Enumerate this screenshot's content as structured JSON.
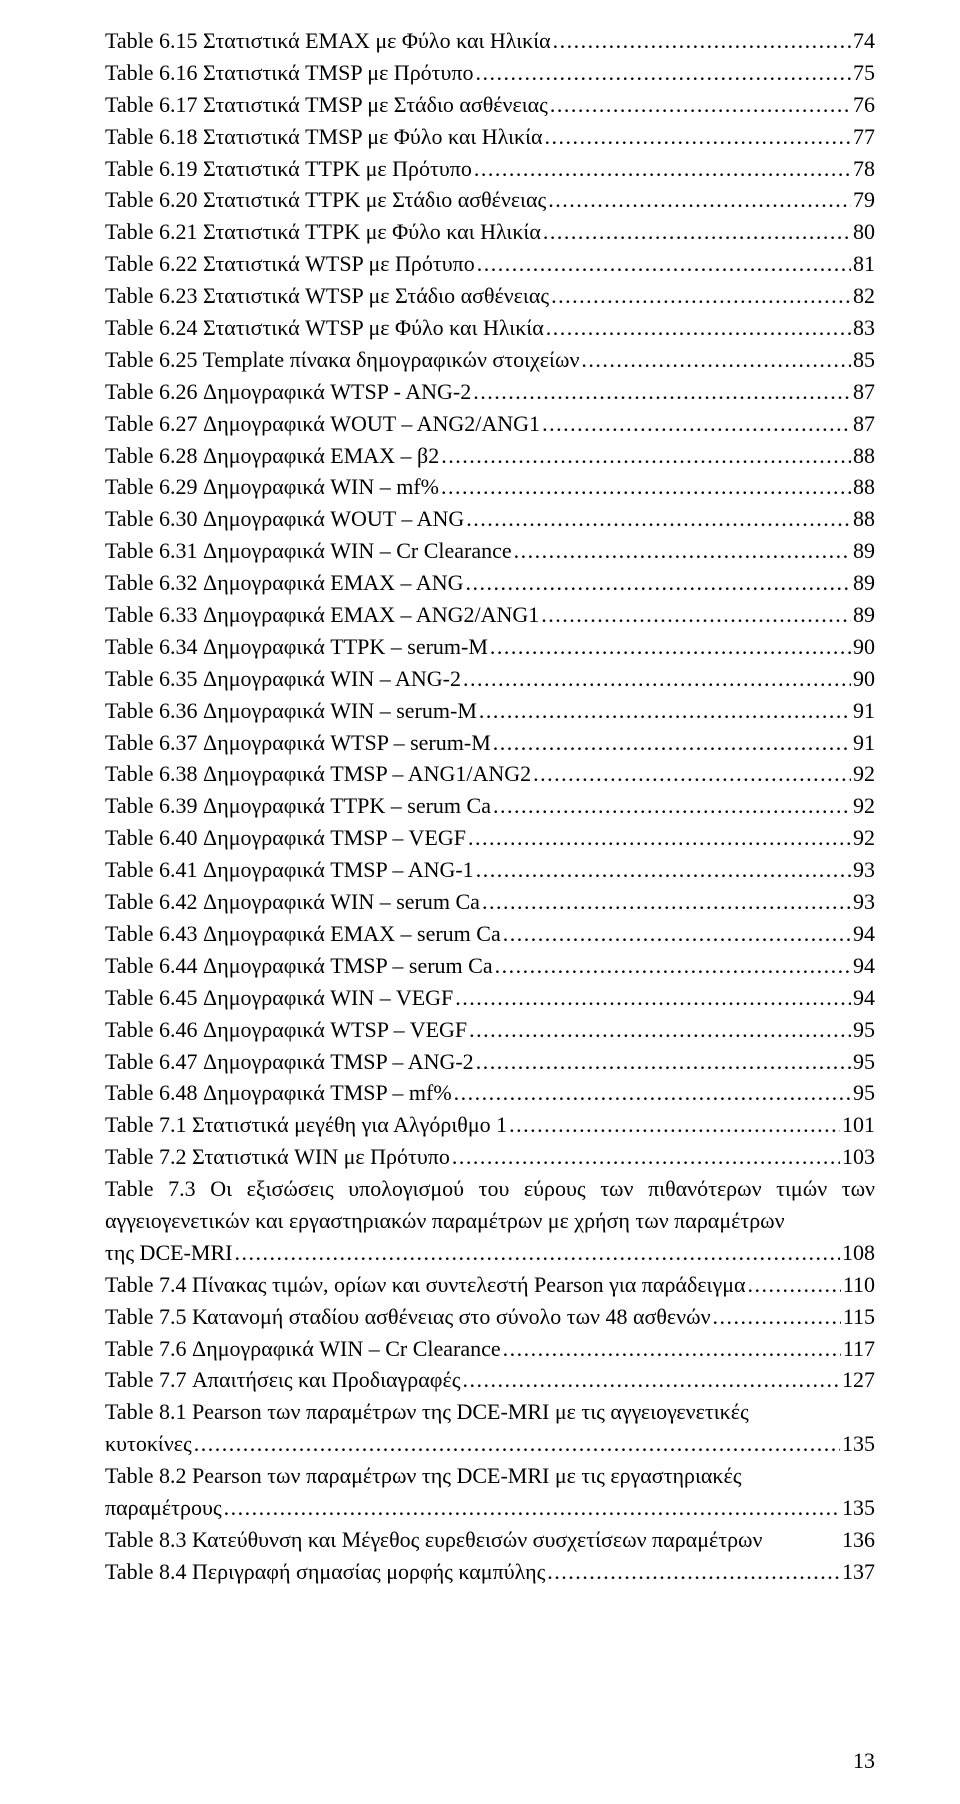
{
  "toc": {
    "footer_page": "13",
    "entries": [
      {
        "label": "Table 6.15 Στατιστικά ΕΜΑΧ με Φύλο και Ηλικία",
        "page": "74"
      },
      {
        "label": "Table 6.16 Στατιστικά TMSP με Πρότυπο",
        "page": "75"
      },
      {
        "label": "Table 6.17 Στατιστικά TMSP με Στάδιο ασθένειας",
        "page": "76"
      },
      {
        "label": "Table 6.18 Στατιστικά TMSP με Φύλο και Ηλικία",
        "page": "77"
      },
      {
        "label": "Table 6.19 Στατιστικά TTPK με Πρότυπο",
        "page": "78"
      },
      {
        "label": "Table 6.20 Στατιστικά TTPK με Στάδιο ασθένειας",
        "page": "79"
      },
      {
        "label": "Table 6.21 Στατιστικά TTPK με Φύλο και Ηλικία",
        "page": "80"
      },
      {
        "label": "Table 6.22 Στατιστικά WTSP με Πρότυπο",
        "page": "81"
      },
      {
        "label": "Table 6.23 Στατιστικά WTSP με Στάδιο ασθένειας",
        "page": "82"
      },
      {
        "label": "Table 6.24 Στατιστικά WTSP με Φύλο και Ηλικία",
        "page": "83"
      },
      {
        "label": "Table 6.25 Template πίνακα δημογραφικών στοιχείων",
        "page": "85"
      },
      {
        "label": "Table 6.26 Δημογραφικά WTSP - ANG-2",
        "page": "87"
      },
      {
        "label": "Table 6.27 Δημογραφικά WOUT – ANG2/ANG1",
        "page": "87"
      },
      {
        "label": "Table 6.28 Δημογραφικά EMAX – β2",
        "page": "88"
      },
      {
        "label": "Table 6.29 Δημογραφικά WIN – mf%",
        "page": "88"
      },
      {
        "label": "Table 6.30 Δημογραφικά WOUT – ANG",
        "page": "88"
      },
      {
        "label": "Table 6.31 Δημογραφικά WIN – Cr Clearance",
        "page": "89"
      },
      {
        "label": "Table 6.32 Δημογραφικά EMAX – ANG",
        "page": "89"
      },
      {
        "label": "Table 6.33 Δημογραφικά EMAX – ANG2/ANG1",
        "page": "89"
      },
      {
        "label": "Table 6.34 Δημογραφικά TTPK – serum-M",
        "page": "90"
      },
      {
        "label": "Table 6.35 Δημογραφικά WIN – ANG-2",
        "page": "90"
      },
      {
        "label": "Table 6.36 Δημογραφικά WIN – serum-M",
        "page": "91"
      },
      {
        "label": "Table 6.37 Δημογραφικά WTSP – serum-M",
        "page": "91"
      },
      {
        "label": "Table 6.38 Δημογραφικά TMSP – ANG1/ANG2",
        "page": "92"
      },
      {
        "label": "Table 6.39 Δημογραφικά TTPK – serum Ca",
        "page": "92"
      },
      {
        "label": "Table 6.40 Δημογραφικά TMSP – VEGF",
        "page": "92"
      },
      {
        "label": "Table 6.41 Δημογραφικά TMSP – ANG-1",
        "page": "93"
      },
      {
        "label": "Table 6.42 Δημογραφικά WIN – serum Ca",
        "page": "93"
      },
      {
        "label": "Table 6.43 Δημογραφικά EMAX – serum Ca",
        "page": "94"
      },
      {
        "label": "Table 6.44 Δημογραφικά TMSP – serum Ca",
        "page": "94"
      },
      {
        "label": "Table 6.45 Δημογραφικά WIN – VEGF",
        "page": "94"
      },
      {
        "label": "Table 6.46 Δημογραφικά WTSP – VEGF",
        "page": "95"
      },
      {
        "label": "Table 6.47 Δημογραφικά TMSP – ANG-2",
        "page": "95"
      },
      {
        "label": "Table 6.48 Δημογραφικά TMSP – mf%",
        "page": "95"
      },
      {
        "label": "Table 7.1 Στατιστικά μεγέθη για Αλγόριθμο 1",
        "page": "101"
      },
      {
        "label": "Table 7.2 Στατιστικά WIN με Πρότυπο",
        "page": "103"
      },
      {
        "label": "Table 7.3 Οι εξισώσεις υπολογισμού του εύρους των πιθανότερων τιμών των αγγειογενετικών και εργαστηριακών παραμέτρων με χρήση των παραμέτρων της DCE-MRI",
        "page": "108",
        "wrap": true
      },
      {
        "label": "Table 7.4 Πίνακας τιμών, ορίων και συντελεστή Pearson για παράδειγμα",
        "page": "110"
      },
      {
        "label": "Table 7.5 Κατανομή σταδίου ασθένειας στο σύνολο των 48 ασθενών",
        "page": "115"
      },
      {
        "label": "Table 7.6 Δημογραφικά WIN – Cr Clearance",
        "page": "117"
      },
      {
        "label": "Table 7.7 Απαιτήσεις και Προδιαγραφές",
        "page": "127"
      },
      {
        "label": "Table 8.1 Pearson των παραμέτρων της DCE-MRI με τις αγγειογενετικές κυτοκίνες",
        "page": "135",
        "wrap": true
      },
      {
        "label": "Table 8.2 Pearson των παραμέτρων της DCE-MRI με τις εργαστηριακές παραμέτρους",
        "page": "135",
        "wrap": true
      },
      {
        "label": "Table 8.3 Κατεύθυνση και Μέγεθος ευρεθεισών συσχετίσεων παραμέτρων",
        "page": "136",
        "nodots": true
      },
      {
        "label": "Table 8.4 Περιγραφή σημασίας μορφής καμπύλης",
        "page": "137"
      }
    ]
  }
}
